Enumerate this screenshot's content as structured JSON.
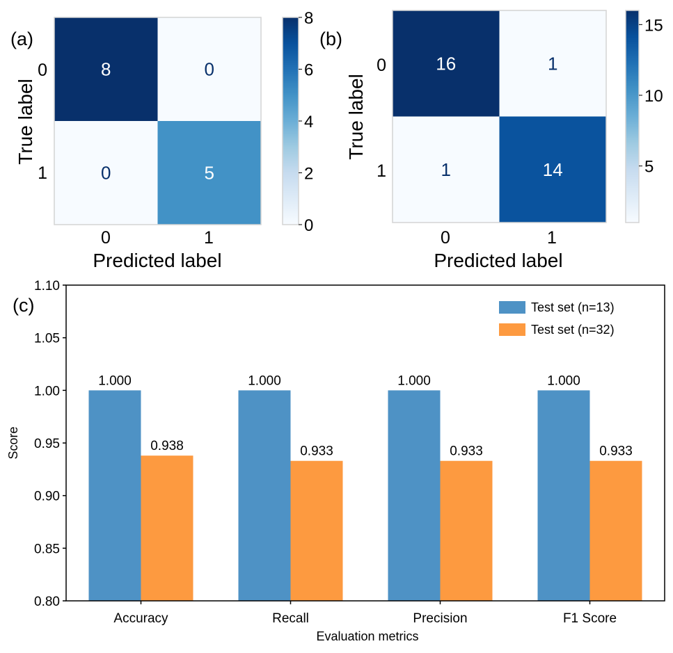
{
  "chart_data": [
    {
      "type": "heatmap",
      "panel_label": "(a)",
      "xlabel": "Predicted label",
      "ylabel": "True label",
      "x_ticks": [
        "0",
        "1"
      ],
      "y_ticks": [
        "0",
        "1"
      ],
      "matrix": [
        [
          8,
          0
        ],
        [
          0,
          5
        ]
      ],
      "colorbar": {
        "min": 0,
        "max": 8,
        "ticks": [
          0,
          2,
          4,
          6,
          8
        ]
      },
      "colormap": "Blues"
    },
    {
      "type": "heatmap",
      "panel_label": "(b)",
      "xlabel": "Predicted label",
      "ylabel": "True label",
      "x_ticks": [
        "0",
        "1"
      ],
      "y_ticks": [
        "0",
        "1"
      ],
      "matrix": [
        [
          16,
          1
        ],
        [
          1,
          14
        ]
      ],
      "colorbar": {
        "min": 1,
        "max": 16,
        "ticks": [
          5,
          10,
          15
        ]
      },
      "colormap": "Blues"
    },
    {
      "type": "bar",
      "panel_label": "(c)",
      "categories": [
        "Accuracy",
        "Recall",
        "Precision",
        "F1 Score"
      ],
      "series": [
        {
          "name": "Test set (n=13)",
          "values": [
            1.0,
            1.0,
            1.0,
            1.0
          ],
          "labels": [
            "1.000",
            "1.000",
            "1.000",
            "1.000"
          ],
          "color": "#4e92c5"
        },
        {
          "name": "Test set (n=32)",
          "values": [
            0.938,
            0.933,
            0.933,
            0.933
          ],
          "labels": [
            "0.938",
            "0.933",
            "0.933",
            "0.933"
          ],
          "color": "#fd9a40"
        }
      ],
      "xlabel": "Evaluation metrics",
      "ylabel": "Score",
      "ylim": [
        0.8,
        1.1
      ],
      "y_ticks": [
        "0.80",
        "0.85",
        "0.90",
        "0.95",
        "1.00",
        "1.05",
        "1.10"
      ],
      "legend": "top-right",
      "grid": false
    }
  ]
}
